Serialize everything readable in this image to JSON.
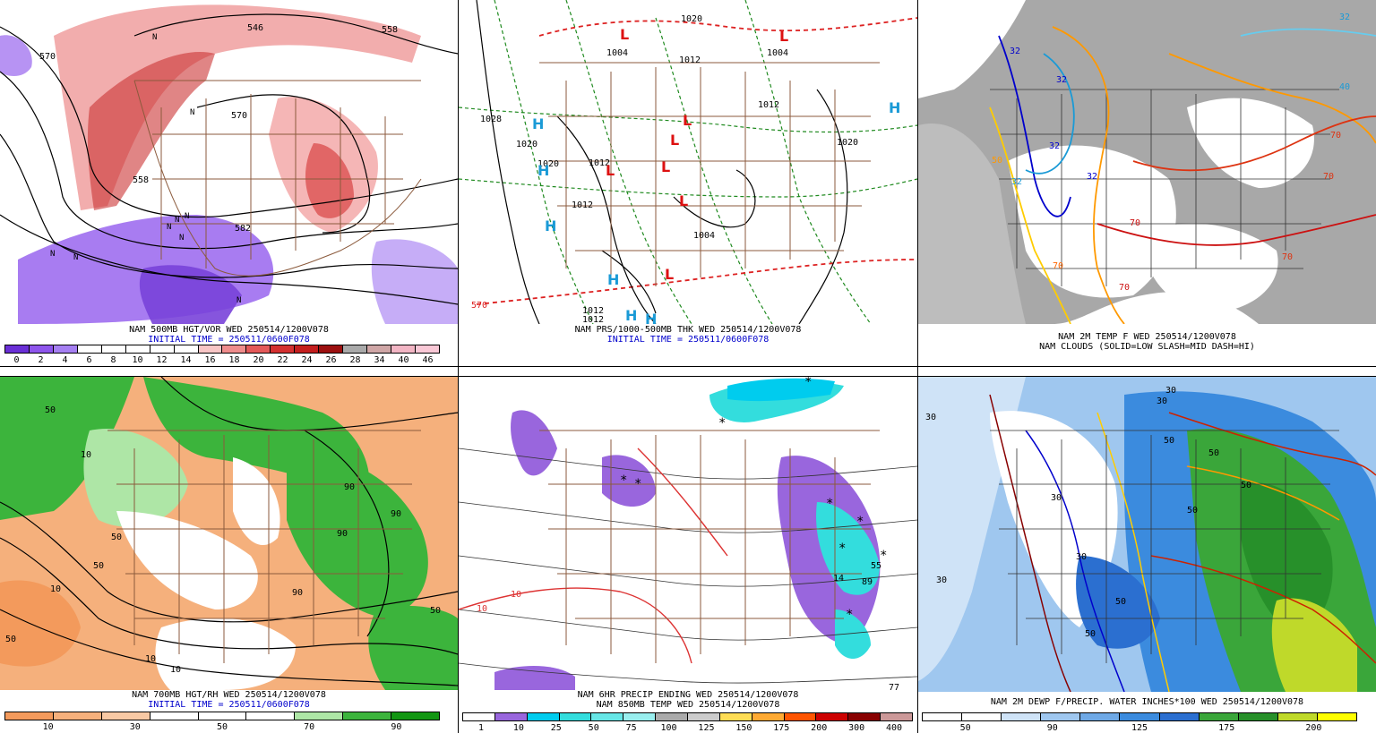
{
  "panels": [
    {
      "id": "p1",
      "caption_line1": "NAM 500MB HGT/VOR WED 250514/1200V078",
      "caption_line2": "INITIAL TIME = 250511/0600F078",
      "colorbar_colors": [
        "#6a2fd6",
        "#8e55ec",
        "#a57ff2",
        "#ffffff",
        "#ffffff",
        "#ffffff",
        "#ffffff",
        "#ffffff",
        "#f8c6c6",
        "#ef8c8c",
        "#e45959",
        "#d43030",
        "#c41e1e",
        "#9c1010",
        "#a9a9a9",
        "#cfa6a6",
        "#f2b5c4",
        "#f9c8d6"
      ],
      "colorbar_ticks": [
        "0",
        "2",
        "4",
        "6",
        "8",
        "10",
        "12",
        "14",
        "16",
        "18",
        "20",
        "22",
        "24",
        "26",
        "28",
        "34",
        "40",
        "46"
      ],
      "contour_labels": [
        "570",
        "546",
        "558",
        "570",
        "582",
        "558"
      ],
      "markers": [
        "N",
        "N",
        "N",
        "N",
        "N",
        "N",
        "N",
        "N",
        "N"
      ]
    },
    {
      "id": "p2",
      "caption_line1": "NAM PRS/1000-500MB THK WED 250514/1200V078",
      "caption_line2": "INITIAL TIME = 250511/0600F078",
      "contour_labels": [
        "1020",
        "1004",
        "1012",
        "1004",
        "1028",
        "1020",
        "1020",
        "1012",
        "1012",
        "1020",
        "1012",
        "1004",
        "1012",
        "1012",
        "570"
      ],
      "highs": [
        "H",
        "H",
        "H",
        "H",
        "H",
        "H",
        "H"
      ],
      "lows": [
        "L",
        "L",
        "L",
        "L",
        "L",
        "L",
        "L",
        "L"
      ]
    },
    {
      "id": "p3",
      "caption_line1": "NAM 2M TEMP F WED 250514/1200V078",
      "caption_line2": "NAM CLOUDS (SOLID=LOW SLASH=MID DASH=HI)",
      "contour_labels": [
        "32",
        "32",
        "32",
        "32",
        "32",
        "50",
        "70",
        "70",
        "70",
        "70",
        "70",
        "40",
        "32",
        "70"
      ]
    },
    {
      "id": "p4",
      "caption_line1": "NAM 700MB HGT/RH WED 250514/1200V078",
      "caption_line2": "INITIAL TIME = 250511/0600F078",
      "colorbar_colors": [
        "#f39a5c",
        "#f5b07c",
        "#f8c9a4",
        "#ffffff",
        "#ffffff",
        "#ffffff",
        "#aee6a6",
        "#3cb43c",
        "#129612"
      ],
      "colorbar_ticks": [
        "10",
        "30",
        "50",
        "70",
        "90"
      ],
      "contour_labels": [
        "50",
        "10",
        "50",
        "90",
        "90",
        "90",
        "50",
        "10",
        "10",
        "50",
        "10",
        "90",
        "50"
      ]
    },
    {
      "id": "p5",
      "caption_line1": "NAM 6HR PRECIP ENDING WED 250514/1200V078",
      "caption_line2": "NAM 850MB TEMP WED 250514/1200V078",
      "colorbar_colors": [
        "#ffffff",
        "#9966dd",
        "#00ccee",
        "#33dddd",
        "#66e6e6",
        "#99eeee",
        "#aaaaaa",
        "#cccccc",
        "#ffdd55",
        "#ffaa33",
        "#ff5500",
        "#cc0000",
        "#880000",
        "#cc9999"
      ],
      "colorbar_ticks": [
        "1",
        "10",
        "25",
        "50",
        "75",
        "100",
        "125",
        "150",
        "175",
        "200",
        "300",
        "400"
      ],
      "contour_labels": [
        "10",
        "10",
        "14",
        "55",
        "89",
        "77"
      ],
      "snow_marks": [
        "*",
        "*",
        "*",
        "*",
        "*",
        "*",
        "*",
        "*",
        "*"
      ]
    },
    {
      "id": "p6",
      "caption_line1": "NAM 2M DEWP F/PRECIP. WATER INCHES*100 WED 250514/1200V078",
      "caption_line2": "",
      "colorbar_colors": [
        "#ffffff",
        "#ffffff",
        "#cfe3f7",
        "#9fc7ef",
        "#6fa9e6",
        "#3b8bde",
        "#2b6fd0",
        "#3aa63a",
        "#27902a",
        "#bfd92a",
        "#ffff00"
      ],
      "colorbar_ticks": [
        "50",
        "90",
        "125",
        "175",
        "200"
      ],
      "contour_labels": [
        "30",
        "50",
        "30",
        "30",
        "30",
        "50",
        "50",
        "30",
        "50",
        "50",
        "50",
        "30"
      ]
    }
  ]
}
